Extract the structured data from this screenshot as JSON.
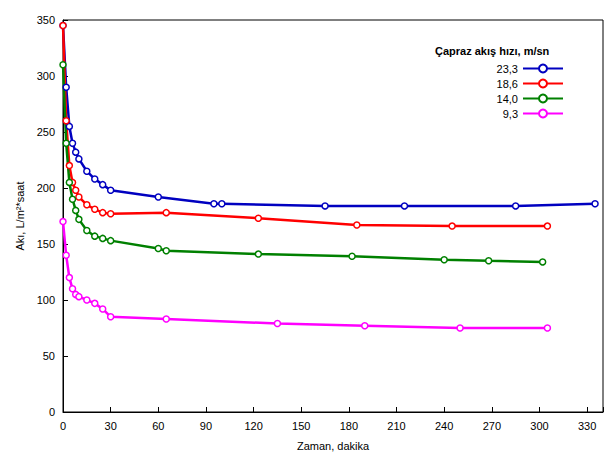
{
  "chart_data": {
    "type": "line",
    "x_label": "Zaman, dakika",
    "y_label": "Akı, L/m²*saat",
    "legend_title": "Çapraz akış hızı, m/sn",
    "legend": "upper right",
    "grid": false,
    "marker": "circle",
    "xlim": [
      0,
      340
    ],
    "xticks": [
      0,
      30,
      60,
      90,
      120,
      150,
      180,
      210,
      240,
      270,
      300,
      330
    ],
    "ylim": [
      0,
      350
    ],
    "yticks": [
      0,
      50,
      100,
      150,
      200,
      250,
      300,
      350
    ],
    "series": [
      {
        "name": "23,3",
        "color": "#0000c0",
        "x": [
          0,
          2,
          4,
          6,
          8,
          10,
          15,
          20,
          25,
          30,
          60,
          95,
          100,
          165,
          215,
          285,
          335
        ],
        "values": [
          345,
          290,
          255,
          240,
          232,
          226,
          215,
          208,
          203,
          198,
          192,
          186,
          186,
          184,
          184,
          184,
          186
        ]
      },
      {
        "name": "18,6",
        "color": "#ff0000",
        "x": [
          0,
          2,
          4,
          6,
          8,
          10,
          15,
          20,
          25,
          30,
          65,
          123,
          185,
          245,
          305
        ],
        "values": [
          345,
          260,
          220,
          205,
          198,
          192,
          185,
          181,
          178,
          177,
          178,
          173,
          167,
          166,
          166
        ]
      },
      {
        "name": "14,0",
        "color": "#008000",
        "x": [
          0,
          2,
          4,
          6,
          8,
          10,
          15,
          20,
          25,
          30,
          60,
          65,
          123,
          182,
          240,
          268,
          302
        ],
        "values": [
          310,
          240,
          205,
          190,
          180,
          172,
          162,
          157,
          155,
          153,
          146,
          144,
          141,
          139,
          136,
          135,
          134
        ]
      },
      {
        "name": "9,3",
        "color": "#ff00ff",
        "x": [
          0,
          2,
          4,
          6,
          8,
          10,
          15,
          20,
          25,
          30,
          65,
          135,
          190,
          250,
          305
        ],
        "values": [
          170,
          140,
          120,
          110,
          105,
          103,
          100,
          97,
          92,
          85,
          83,
          79,
          77,
          75,
          75
        ]
      }
    ]
  }
}
